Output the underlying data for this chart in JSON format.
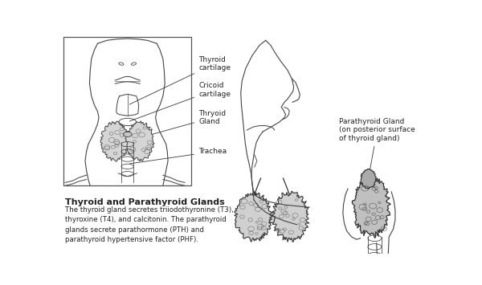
{
  "bg_color": "#ffffff",
  "figure_width": 6.0,
  "figure_height": 3.55,
  "dpi": 100,
  "bold_heading": "Thyroid and Parathyroid Glands",
  "description_lines": [
    "The thyroid gland secretes triiodothyronine (T3),",
    "thyroxine (T4), and calcitonin. The parathyroid",
    "glands secrete parathormone (PTH) and",
    "parathyroid hypertensive factor (PHF)."
  ],
  "text_color": "#222222",
  "label_fontsize": 6.5,
  "heading_fontsize": 8.0,
  "desc_fontsize": 6.2,
  "line_color": "#444444",
  "line_width": 0.8
}
